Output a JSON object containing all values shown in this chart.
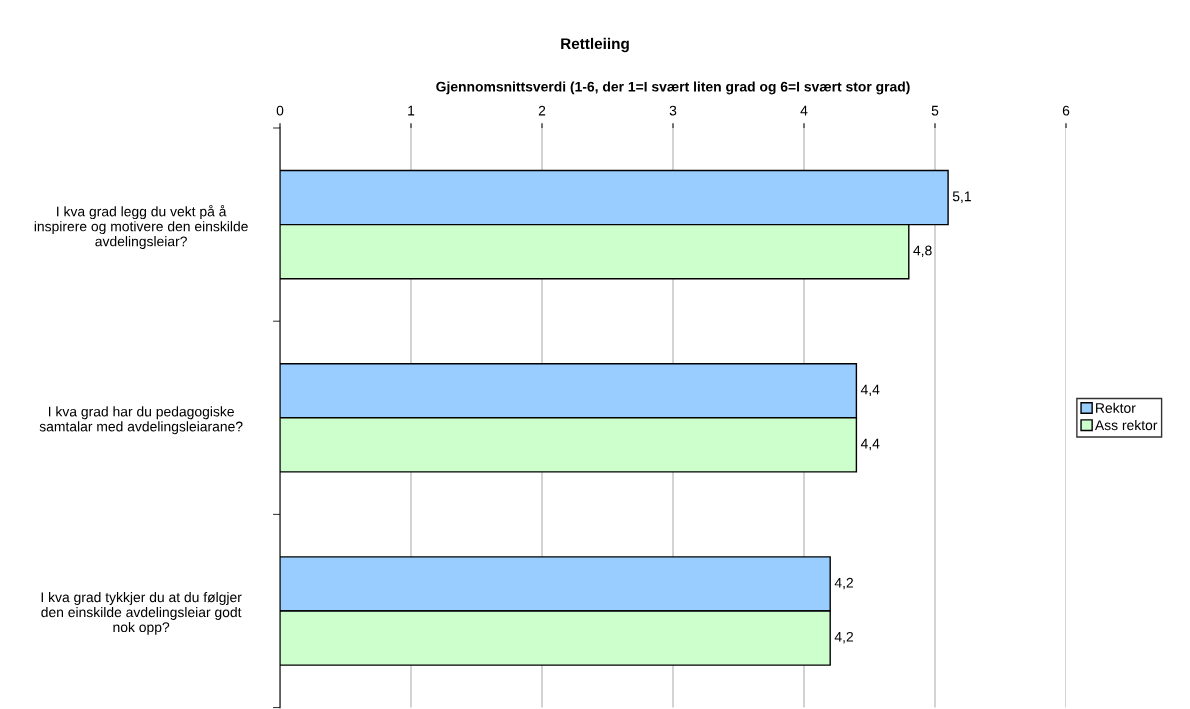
{
  "chart_data": {
    "type": "bar",
    "orientation": "horizontal",
    "title": "Rettleiing",
    "xlabel": "Gjennomsnittsverdi (1-6, der 1=I svært liten grad og 6=I svært stor grad)",
    "categories": [
      "I kva grad legg du vekt på å\ninspirere og motivere den einskilde\navdelingsleiar?",
      "I kva grad har du pedagogiske\nsamtalar med avdelingsleiarane?",
      "I kva grad tykkjer du at du følgjer\nden einskilde avdelingsleiar godt\nnok opp?"
    ],
    "series": [
      {
        "name": "Rektor",
        "color": "#99ccff",
        "values": [
          5.1,
          4.4,
          4.2
        ],
        "value_labels": [
          "5,1",
          "4,4",
          "4,2"
        ]
      },
      {
        "name": "Ass rektor",
        "color": "#ccffcc",
        "values": [
          4.8,
          4.4,
          4.2
        ],
        "value_labels": [
          "4,8",
          "4,4",
          "4,2"
        ]
      }
    ],
    "xlim": [
      0,
      6
    ],
    "xticks": [
      0,
      1,
      2,
      3,
      4,
      5,
      6
    ],
    "grid": "x",
    "legend": "right"
  }
}
